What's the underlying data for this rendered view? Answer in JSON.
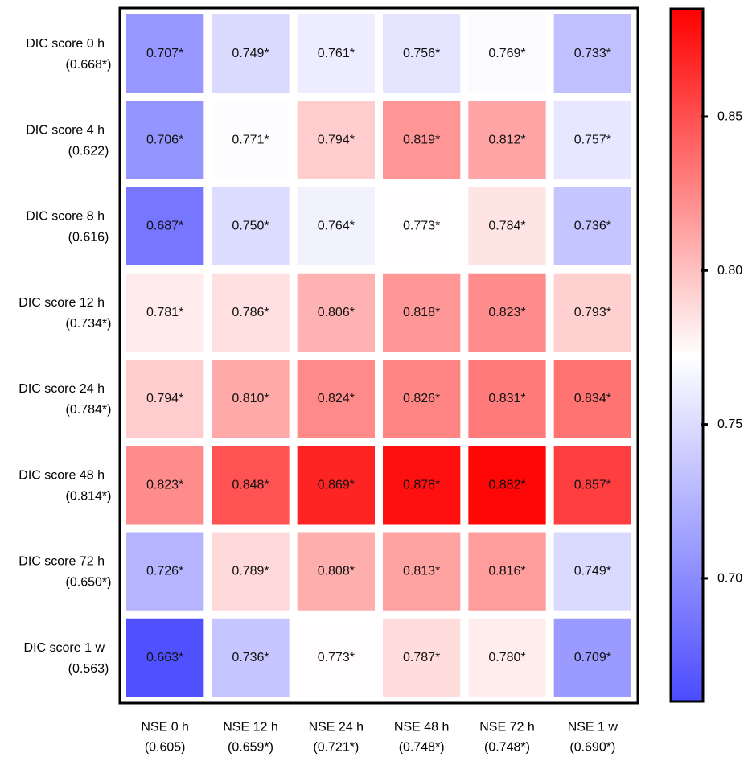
{
  "chart_data": {
    "type": "heatmap",
    "rows": [
      {
        "label": "DIC score 0 h",
        "auc": "(0.668*)"
      },
      {
        "label": "DIC score 4 h",
        "auc": "(0.622)"
      },
      {
        "label": "DIC score 8 h",
        "auc": "(0.616)"
      },
      {
        "label": "DIC score 12 h",
        "auc": "(0.734*)"
      },
      {
        "label": "DIC score 24 h",
        "auc": "(0.784*)"
      },
      {
        "label": "DIC score 48 h",
        "auc": "(0.814*)"
      },
      {
        "label": "DIC score 72 h",
        "auc": "(0.650*)"
      },
      {
        "label": "DIC score 1 w",
        "auc": "(0.563)"
      }
    ],
    "columns": [
      {
        "label": "NSE 0 h",
        "auc": "(0.605)"
      },
      {
        "label": "NSE 12 h",
        "auc": "(0.659*)"
      },
      {
        "label": "NSE 24 h",
        "auc": "(0.721*)"
      },
      {
        "label": "NSE 48 h",
        "auc": "(0.748*)"
      },
      {
        "label": "NSE 72 h",
        "auc": "(0.748*)"
      },
      {
        "label": "NSE 1 w",
        "auc": "(0.690*)"
      }
    ],
    "values": [
      [
        0.707,
        0.749,
        0.761,
        0.756,
        0.769,
        0.733
      ],
      [
        0.706,
        0.771,
        0.794,
        0.819,
        0.812,
        0.757
      ],
      [
        0.687,
        0.75,
        0.764,
        0.773,
        0.784,
        0.736
      ],
      [
        0.781,
        0.786,
        0.806,
        0.818,
        0.823,
        0.793
      ],
      [
        0.794,
        0.81,
        0.824,
        0.826,
        0.831,
        0.834
      ],
      [
        0.823,
        0.848,
        0.869,
        0.878,
        0.882,
        0.857
      ],
      [
        0.726,
        0.789,
        0.808,
        0.813,
        0.816,
        0.749
      ],
      [
        0.663,
        0.736,
        0.773,
        0.787,
        0.78,
        0.709
      ]
    ],
    "cell_labels": [
      [
        "0.707*",
        "0.749*",
        "0.761*",
        "0.756*",
        "0.769*",
        "0.733*"
      ],
      [
        "0.706*",
        "0.771*",
        "0.794*",
        "0.819*",
        "0.812*",
        "0.757*"
      ],
      [
        "0.687*",
        "0.750*",
        "0.764*",
        "0.773*",
        "0.784*",
        "0.736*"
      ],
      [
        "0.781*",
        "0.786*",
        "0.806*",
        "0.818*",
        "0.823*",
        "0.793*"
      ],
      [
        "0.794*",
        "0.810*",
        "0.824*",
        "0.826*",
        "0.831*",
        "0.834*"
      ],
      [
        "0.823*",
        "0.848*",
        "0.869*",
        "0.878*",
        "0.882*",
        "0.857*"
      ],
      [
        "0.726*",
        "0.789*",
        "0.808*",
        "0.813*",
        "0.816*",
        "0.749*"
      ],
      [
        "0.663*",
        "0.736*",
        "0.773*",
        "0.787*",
        "0.780*",
        "0.709*"
      ]
    ],
    "colorbar": {
      "range": [
        0.66,
        0.885
      ],
      "midpoint": 0.772,
      "ticks": [
        0.7,
        0.75,
        0.8,
        0.85
      ],
      "tick_labels": [
        "0.70",
        "0.75",
        "0.80",
        "0.85"
      ],
      "colors": {
        "low": "#4b4bff",
        "mid": "#ffffff",
        "high": "#ff0000"
      }
    }
  }
}
